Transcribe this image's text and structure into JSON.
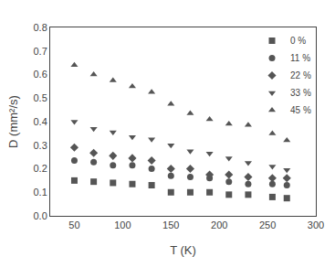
{
  "chart_data": {
    "type": "scatter",
    "xlabel": "T (K)",
    "ylabel": "D (mm²/s)",
    "xlim": [
      25,
      300
    ],
    "ylim": [
      0.0,
      0.8
    ],
    "xticks": [
      50,
      100,
      150,
      200,
      250,
      300
    ],
    "yticks": [
      {
        "value": 0.0,
        "label": "0.0"
      },
      0.1,
      0.2,
      0.3,
      0.4,
      0.5,
      0.6,
      0.7,
      0.8
    ],
    "grid": false,
    "legend": "upper right",
    "series": [
      {
        "name": "0 %",
        "marker": "square",
        "color": "#555555",
        "x": [
          50,
          70,
          90,
          110,
          130,
          150,
          170,
          190,
          210,
          230,
          255,
          270
        ],
        "values": [
          0.15,
          0.145,
          0.14,
          0.135,
          0.13,
          0.1,
          0.1,
          0.1,
          0.09,
          0.09,
          0.08,
          0.075
        ]
      },
      {
        "name": "11 %",
        "marker": "circle",
        "color": "#555555",
        "x": [
          50,
          70,
          90,
          110,
          130,
          150,
          170,
          190,
          210,
          230,
          255,
          270
        ],
        "values": [
          0.235,
          0.228,
          0.215,
          0.215,
          0.2,
          0.17,
          0.165,
          0.16,
          0.145,
          0.135,
          0.135,
          0.13
        ]
      },
      {
        "name": "22 %",
        "marker": "diamond",
        "color": "#555555",
        "x": [
          50,
          70,
          90,
          110,
          130,
          150,
          170,
          190,
          210,
          230,
          255,
          270
        ],
        "values": [
          0.29,
          0.267,
          0.255,
          0.245,
          0.235,
          0.2,
          0.2,
          0.175,
          0.175,
          0.165,
          0.16,
          0.16
        ]
      },
      {
        "name": "33 %",
        "marker": "triangle-down",
        "color": "#555555",
        "x": [
          50,
          70,
          90,
          110,
          130,
          150,
          170,
          190,
          210,
          230,
          255,
          270
        ],
        "values": [
          0.4,
          0.37,
          0.355,
          0.335,
          0.325,
          0.3,
          0.275,
          0.265,
          0.245,
          0.225,
          0.21,
          0.195
        ]
      },
      {
        "name": "45 %",
        "marker": "triangle-up",
        "color": "#555555",
        "x": [
          50,
          70,
          90,
          110,
          130,
          150,
          170,
          190,
          210,
          230,
          255,
          270
        ],
        "values": [
          0.64,
          0.6,
          0.575,
          0.55,
          0.525,
          0.475,
          0.435,
          0.41,
          0.39,
          0.385,
          0.35,
          0.32
        ]
      }
    ]
  }
}
